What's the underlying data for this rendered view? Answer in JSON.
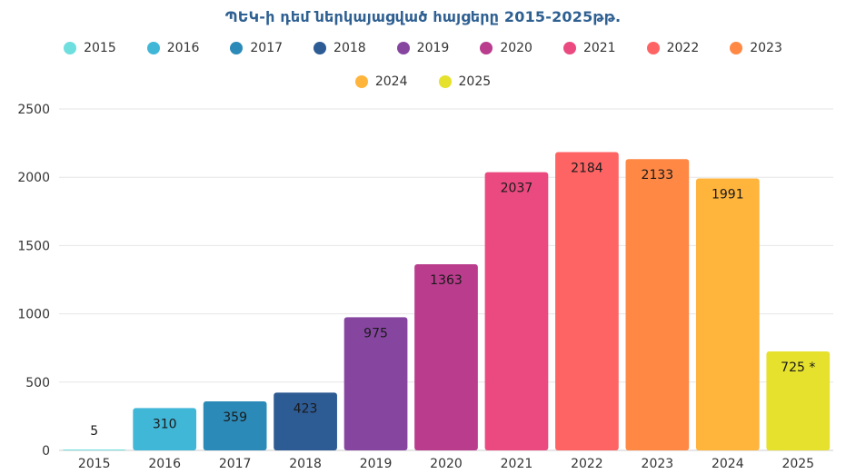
{
  "chart_data": {
    "type": "bar",
    "title": "ՊԵԿ-ի դեմ ներկայացված հայցերը 2015-2025թթ.",
    "xlabel": "",
    "ylabel": "",
    "ylim": [
      0,
      2500
    ],
    "yticks": [
      "0",
      "500",
      "1000",
      "1500",
      "2000",
      "2500"
    ],
    "categories": [
      "2015",
      "2016",
      "2017",
      "2018",
      "2019",
      "2020",
      "2021",
      "2022",
      "2023",
      "2024",
      "2025"
    ],
    "values": [
      5,
      310,
      359,
      423,
      975,
      1363,
      2037,
      2184,
      2133,
      1991,
      725
    ],
    "data_labels": [
      "5",
      "310",
      "359",
      "423",
      "975",
      "1363",
      "2037",
      "2184",
      "2133",
      "1991",
      "725 *"
    ],
    "colors": [
      "#6fdede",
      "#41b7d8",
      "#2b8ab8",
      "#2d5b94",
      "#8646a0",
      "#b93c8d",
      "#ea4a7f",
      "#ff6464",
      "#ff8845",
      "#ffb43c",
      "#e6e12d"
    ],
    "grid": true,
    "legend": {
      "placement": "top",
      "row1": [
        "2015",
        "2016",
        "2017",
        "2018",
        "2019",
        "2020",
        "2021",
        "2022",
        "2023"
      ],
      "row2": [
        "2024",
        "2025"
      ]
    }
  }
}
